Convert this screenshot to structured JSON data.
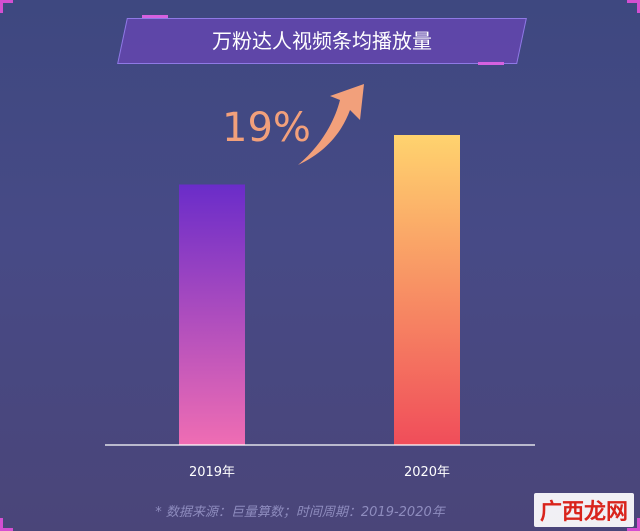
{
  "chart_data": {
    "type": "bar",
    "title": "万粉达人视频条均播放量",
    "categories": [
      "2019年",
      "2020年"
    ],
    "values": [
      100,
      119
    ],
    "annotation": "19%",
    "grid": false,
    "legend": "none"
  },
  "footer": {
    "source": "* 数据来源：巨量算数；时间周期：2019-2020年"
  },
  "watermark": "广西龙网",
  "colors": {
    "bar_2019_top": "#6a2cc9",
    "bar_2019_bottom": "#ef6db3",
    "bar_2020_top": "#ffd36e",
    "bar_2020_bottom": "#f04d5a",
    "arrow": "#f2a07b",
    "axis": "#ffffff"
  }
}
